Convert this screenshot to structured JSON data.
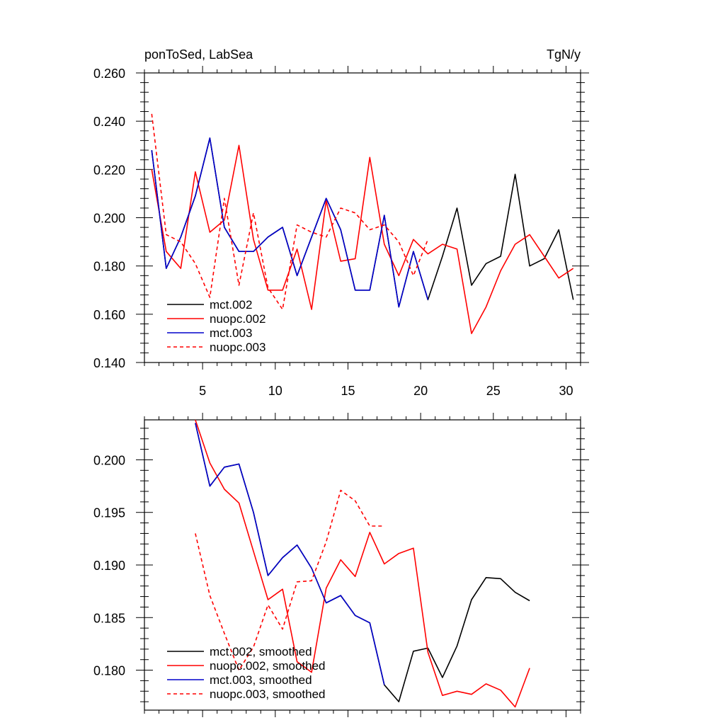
{
  "chart_data": [
    {
      "type": "line",
      "title": "ponToSed, LabSea",
      "units": "TgN/y",
      "xlim": [
        1,
        31
      ],
      "ylim": [
        0.14,
        0.26
      ],
      "x_ticks": [
        5,
        10,
        15,
        20,
        25,
        30
      ],
      "x_tick_labels": [
        "5",
        "10",
        "15",
        "20",
        "25",
        "30"
      ],
      "y_ticks": [
        0.14,
        0.16,
        0.18,
        0.2,
        0.22,
        0.24,
        0.26
      ],
      "y_tick_labels": [
        "0.140",
        "0.160",
        "0.180",
        "0.200",
        "0.220",
        "0.240",
        "0.260"
      ],
      "legend_position": "bottom-left",
      "series": [
        {
          "name": "mct.002",
          "color": "#000000",
          "dash": "solid",
          "x": [
            1.5,
            2.5,
            3.5,
            4.5,
            5.5,
            6.5,
            7.5,
            8.5,
            9.5,
            10.5,
            11.5,
            12.5,
            13.5,
            14.5,
            15.5,
            16.5,
            17.5,
            18.5,
            19.5,
            20.5,
            21.5,
            22.5,
            23.5,
            24.5,
            25.5,
            26.5,
            27.5,
            28.5,
            29.5,
            30.5
          ],
          "y": [
            0.228,
            0.179,
            0.192,
            0.209,
            0.233,
            0.196,
            0.186,
            0.186,
            0.192,
            0.196,
            0.176,
            0.192,
            0.208,
            0.195,
            0.17,
            0.17,
            0.201,
            0.163,
            0.186,
            0.166,
            0.184,
            0.204,
            0.172,
            0.181,
            0.184,
            0.218,
            0.18,
            0.183,
            0.195,
            0.166
          ]
        },
        {
          "name": "nuopc.002",
          "color": "#ff0000",
          "dash": "solid",
          "x": [
            1.5,
            2.5,
            3.5,
            4.5,
            5.5,
            6.5,
            7.5,
            8.5,
            9.5,
            10.5,
            11.5,
            12.5,
            13.5,
            14.5,
            15.5,
            16.5,
            17.5,
            18.5,
            19.5,
            20.5,
            21.5,
            22.5,
            23.5,
            24.5,
            25.5,
            26.5,
            27.5,
            28.5,
            29.5,
            30.5
          ],
          "y": [
            0.22,
            0.186,
            0.179,
            0.219,
            0.194,
            0.199,
            0.23,
            0.191,
            0.17,
            0.17,
            0.187,
            0.162,
            0.207,
            0.182,
            0.183,
            0.225,
            0.189,
            0.176,
            0.191,
            0.185,
            0.189,
            0.187,
            0.152,
            0.163,
            0.178,
            0.189,
            0.193,
            0.184,
            0.175,
            0.179
          ]
        },
        {
          "name": "mct.003",
          "color": "#0000cc",
          "dash": "solid",
          "x": [
            1.5,
            2.5,
            3.5,
            4.5,
            5.5,
            6.5,
            7.5,
            8.5,
            9.5,
            10.5,
            11.5,
            12.5,
            13.5,
            14.5,
            15.5,
            16.5,
            17.5,
            18.5,
            19.5,
            20.5
          ],
          "y": [
            0.228,
            0.179,
            0.192,
            0.209,
            0.233,
            0.196,
            0.186,
            0.186,
            0.192,
            0.196,
            0.176,
            0.192,
            0.208,
            0.195,
            0.17,
            0.17,
            0.201,
            0.163,
            0.186,
            0.166
          ]
        },
        {
          "name": "nuopc.003",
          "color": "#ff0000",
          "dash": "dashed",
          "x": [
            1.5,
            2.5,
            3.5,
            4.5,
            5.5,
            6.5,
            7.5,
            8.5,
            9.5,
            10.5,
            11.5,
            12.5,
            13.5,
            14.5,
            15.5,
            16.5,
            17.5,
            18.5,
            19.5,
            20.5
          ],
          "y": [
            0.243,
            0.193,
            0.19,
            0.181,
            0.167,
            0.208,
            0.172,
            0.202,
            0.171,
            0.162,
            0.197,
            0.194,
            0.192,
            0.204,
            0.202,
            0.195,
            0.197,
            0.19,
            0.176,
            0.191
          ]
        }
      ]
    },
    {
      "type": "line",
      "xlim": [
        1,
        31
      ],
      "ylim": [
        0.1762,
        0.2038
      ],
      "x_ticks": [
        5,
        10,
        15,
        20,
        25,
        30
      ],
      "y_ticks": [
        0.18,
        0.185,
        0.19,
        0.195,
        0.2
      ],
      "y_tick_labels": [
        "0.180",
        "0.185",
        "0.190",
        "0.195",
        "0.200"
      ],
      "legend_position": "bottom-left",
      "series": [
        {
          "name": "mct.002, smoothed",
          "color": "#000000",
          "dash": "solid",
          "x": [
            4.5,
            5.5,
            6.5,
            7.5,
            8.5,
            9.5,
            10.5,
            11.5,
            12.5,
            13.5,
            14.5,
            15.5,
            16.5,
            17.5,
            18.5,
            19.5,
            20.5,
            21.5,
            22.5,
            23.5,
            24.5,
            25.5,
            26.5,
            27.5
          ],
          "y": [
            0.2035,
            0.1975,
            0.1993,
            0.1996,
            0.195,
            0.189,
            0.1907,
            0.1919,
            0.1897,
            0.1864,
            0.1871,
            0.1852,
            0.1845,
            0.1786,
            0.177,
            0.1818,
            0.1821,
            0.1793,
            0.1823,
            0.1867,
            0.1888,
            0.1887,
            0.1874,
            0.1866
          ]
        },
        {
          "name": "nuopc.002, smoothed",
          "color": "#ff0000",
          "dash": "solid",
          "x": [
            4.5,
            5.5,
            6.5,
            7.5,
            8.5,
            9.5,
            10.5,
            11.5,
            12.5,
            13.5,
            14.5,
            15.5,
            16.5,
            17.5,
            18.5,
            19.5,
            20.5,
            21.5,
            22.5,
            23.5,
            24.5,
            25.5,
            26.5,
            27.5
          ],
          "y": [
            0.2038,
            0.1997,
            0.1972,
            0.1959,
            0.1913,
            0.1867,
            0.1877,
            0.1808,
            0.1798,
            0.1878,
            0.1905,
            0.1889,
            0.1931,
            0.1901,
            0.1911,
            0.1916,
            0.1817,
            0.1776,
            0.178,
            0.1777,
            0.1787,
            0.1781,
            0.1765,
            0.1802
          ]
        },
        {
          "name": "mct.003, smoothed",
          "color": "#0000cc",
          "dash": "solid",
          "x": [
            4.5,
            5.5,
            6.5,
            7.5,
            8.5,
            9.5,
            10.5,
            11.5,
            12.5,
            13.5,
            14.5,
            15.5,
            16.5,
            17.5
          ],
          "y": [
            0.2035,
            0.1975,
            0.1993,
            0.1996,
            0.195,
            0.189,
            0.1907,
            0.1919,
            0.1897,
            0.1864,
            0.1871,
            0.1852,
            0.1845,
            0.1786
          ]
        },
        {
          "name": "nuopc.003, smoothed",
          "color": "#ff0000",
          "dash": "dashed",
          "x": [
            4.5,
            5.5,
            6.5,
            7.5,
            8.5,
            9.5,
            10.5,
            11.5,
            12.5,
            13.5,
            14.5,
            15.5,
            16.5,
            17.5
          ],
          "y": [
            0.193,
            0.1871,
            0.1835,
            0.18,
            0.1822,
            0.1862,
            0.1839,
            0.1884,
            0.1885,
            0.1922,
            0.1971,
            0.1961,
            0.1937,
            0.1937
          ]
        }
      ]
    }
  ]
}
